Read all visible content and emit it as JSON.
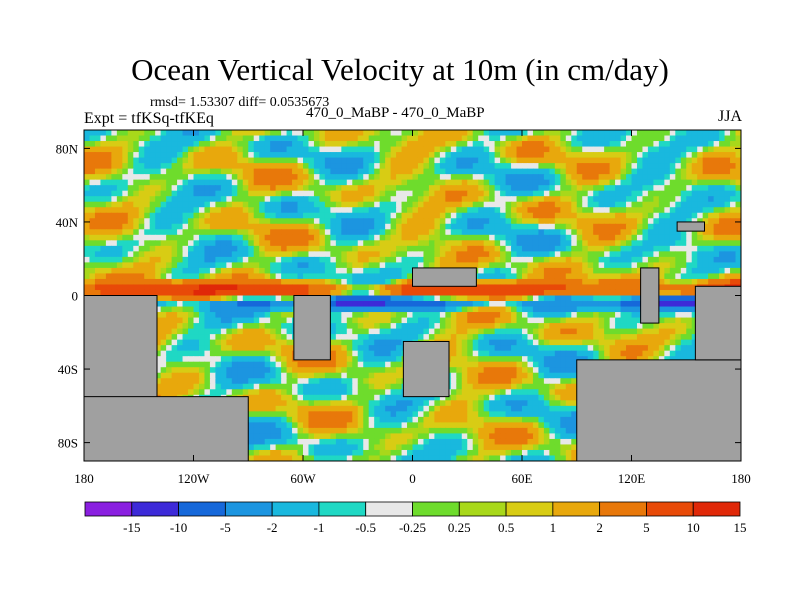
{
  "chart_data": {
    "type": "heatmap",
    "title": "Ocean Vertical Velocity at 10m (in cm/day)",
    "stats_line": "rmsd= 1.53307 diff= 0.0535673",
    "left_label": "Expt = tfKSq-tfKEq",
    "center_label": "470_0_MaBP - 470_0_MaBP",
    "right_label": "JJA",
    "x_axis": {
      "range": [
        -180,
        180
      ],
      "ticks": [
        {
          "value": -180,
          "label": "180"
        },
        {
          "value": -120,
          "label": "120W"
        },
        {
          "value": -60,
          "label": "60W"
        },
        {
          "value": 0,
          "label": "0"
        },
        {
          "value": 60,
          "label": "60E"
        },
        {
          "value": 120,
          "label": "120E"
        },
        {
          "value": 180,
          "label": "180"
        }
      ]
    },
    "y_axis": {
      "range": [
        -90,
        90
      ],
      "ticks": [
        {
          "value": 80,
          "label": "80N"
        },
        {
          "value": 40,
          "label": "40N"
        },
        {
          "value": 0,
          "label": "0"
        },
        {
          "value": -40,
          "label": "40S"
        },
        {
          "value": -80,
          "label": "80S"
        }
      ]
    },
    "colorbar": {
      "colors": [
        "#8a1fe0",
        "#3d2ad8",
        "#1668da",
        "#1c95e0",
        "#19b8de",
        "#1fd8c4",
        "#e8e8e8",
        "#6edc2c",
        "#a8d81a",
        "#d8cc14",
        "#e8a80c",
        "#e8780a",
        "#e84a08",
        "#e02808"
      ],
      "labels": [
        "-15",
        "-10",
        "-5",
        "-2",
        "-1",
        "-0.5",
        "-0.25",
        "0.25",
        "0.5",
        "1",
        "2",
        "5",
        "10",
        "15"
      ]
    },
    "field_description": {
      "land": [
        {
          "name": "south-american-block",
          "lon": [
            -180,
            -140
          ],
          "lat": [
            -90,
            0
          ]
        },
        {
          "name": "southern-block",
          "lon": [
            -180,
            -90
          ],
          "lat": [
            -90,
            -55
          ]
        },
        {
          "name": "continent-east",
          "lon": [
            90,
            180
          ],
          "lat": [
            -90,
            -35
          ]
        },
        {
          "name": "east-landmass",
          "lon": [
            155,
            180
          ],
          "lat": [
            -35,
            5
          ]
        },
        {
          "name": "island-central",
          "lon": [
            -65,
            -45
          ],
          "lat": [
            -35,
            0
          ]
        },
        {
          "name": "island-south-atlantic",
          "lon": [
            -5,
            20
          ],
          "lat": [
            -55,
            -25
          ]
        },
        {
          "name": "island-north-pacific",
          "lon": [
            0,
            35
          ],
          "lat": [
            5,
            15
          ]
        },
        {
          "name": "island-east-indian",
          "lon": [
            125,
            135
          ],
          "lat": [
            -15,
            15
          ]
        },
        {
          "name": "island-nw",
          "lon": [
            145,
            160
          ],
          "lat": [
            35,
            40
          ]
        }
      ],
      "equatorial_upwelling": {
        "lat_center": 0,
        "value_range": [
          5,
          15
        ]
      },
      "equatorial_downwelling": {
        "lat_center": -5,
        "value_range": [
          -15,
          -5
        ]
      }
    }
  }
}
